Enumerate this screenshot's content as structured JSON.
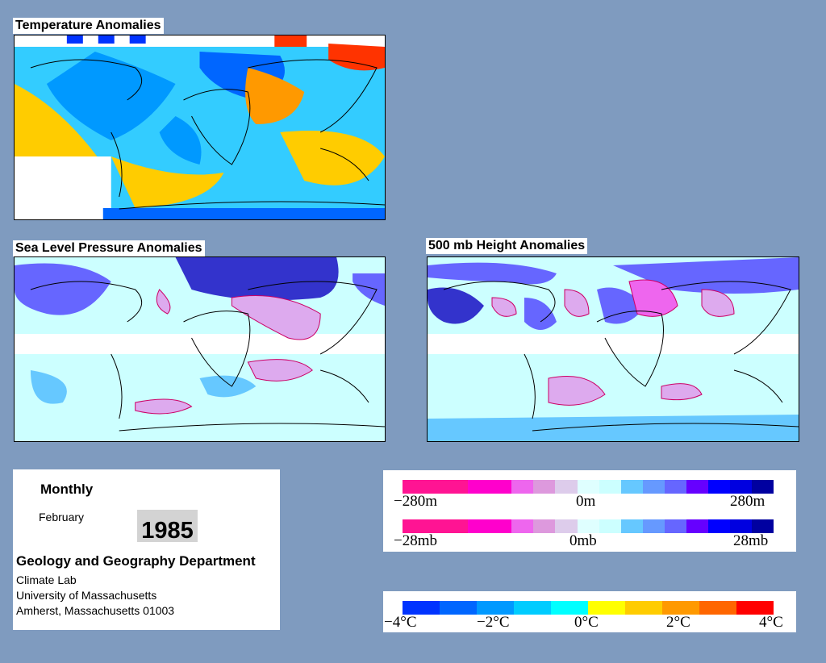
{
  "maps": {
    "temperature": {
      "title": "Temperature Anomalies"
    },
    "slp": {
      "title": "Sea Level Pressure Anomalies"
    },
    "height500": {
      "title": "500 mb Height Anomalies"
    }
  },
  "info": {
    "period": "Monthly",
    "month": "February",
    "year": "1985",
    "department": "Geology and Geography Department",
    "lab": "Climate Lab",
    "university": "University of Massachusetts",
    "address": "Amherst, Massachusetts 01003"
  },
  "height_scale": {
    "labels": [
      "−280m",
      "0m",
      "280m"
    ],
    "colors": [
      "#ff1493",
      "#ff1493",
      "#ff1493",
      "#ff00cc",
      "#ff00cc",
      "#ee66ee",
      "#dd99dd",
      "#ddcceb",
      "#dfffff",
      "#ccffff",
      "#66c8ff",
      "#6699ff",
      "#6666ff",
      "#6600ff",
      "#0000ff",
      "#0000e0",
      "#0000a0"
    ]
  },
  "pressure_scale": {
    "labels": [
      "−28mb",
      "0mb",
      "28mb"
    ],
    "colors": [
      "#ff1493",
      "#ff1493",
      "#ff1493",
      "#ff00cc",
      "#ff00cc",
      "#ee66ee",
      "#dd99dd",
      "#ddcceb",
      "#dfffff",
      "#ccffff",
      "#66c8ff",
      "#6699ff",
      "#6666ff",
      "#6600ff",
      "#0000ff",
      "#0000e0",
      "#0000a0"
    ]
  },
  "temp_scale": {
    "labels": [
      "−4°C",
      "−2°C",
      "0°C",
      "2°C",
      "4°C"
    ],
    "colors": [
      "#0033ff",
      "#0066ff",
      "#0099ff",
      "#00ccff",
      "#00ffff",
      "#ffff00",
      "#ffcc00",
      "#ff9900",
      "#ff6600",
      "#ff0000"
    ]
  }
}
